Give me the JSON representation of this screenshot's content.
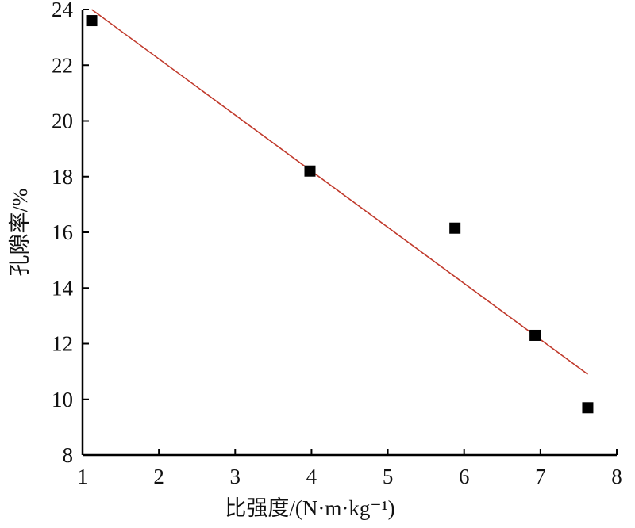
{
  "chart_data": {
    "type": "scatter",
    "title": "",
    "xlabel": "比强度/(N·m·kg⁻¹)",
    "ylabel": "孔隙率/%",
    "xlim": [
      1,
      8
    ],
    "ylim": [
      8,
      24
    ],
    "x_ticks": [
      "1",
      "2",
      "3",
      "4",
      "5",
      "6",
      "7",
      "8"
    ],
    "y_ticks": [
      "8",
      "10",
      "12",
      "14",
      "16",
      "18",
      "20",
      "22",
      "24"
    ],
    "grid": false,
    "series": [
      {
        "marker": "square",
        "color": "#000000",
        "points": [
          {
            "x": 1.12,
            "y": 23.6
          },
          {
            "x": 3.98,
            "y": 18.2
          },
          {
            "x": 5.88,
            "y": 16.15
          },
          {
            "x": 6.93,
            "y": 12.3
          },
          {
            "x": 7.62,
            "y": 9.7
          }
        ]
      }
    ],
    "trendline": {
      "color": "#c0392b",
      "from": {
        "x": 1.12,
        "y": 24.0
      },
      "to": {
        "x": 7.62,
        "y": 10.9
      }
    }
  }
}
